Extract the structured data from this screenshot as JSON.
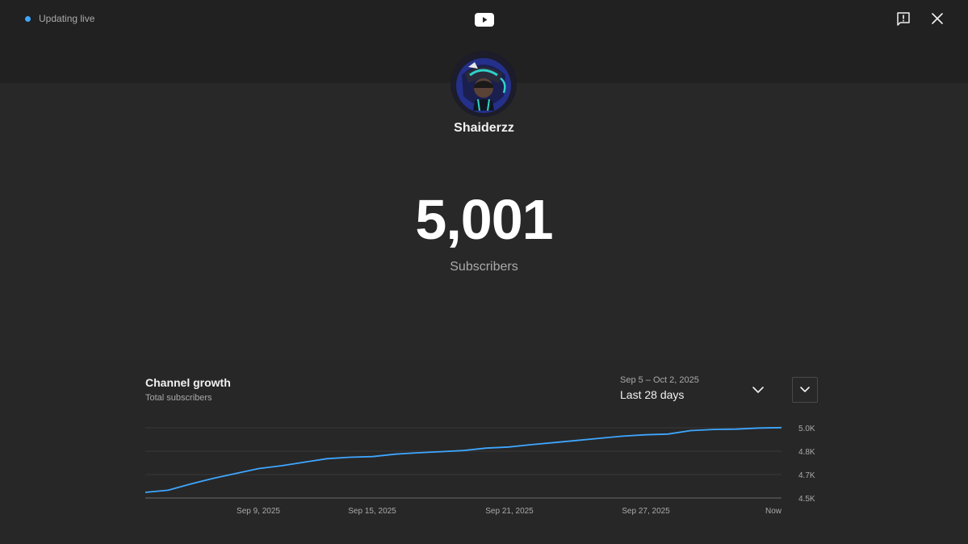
{
  "header": {
    "status_text": "Updating live",
    "status_color": "#3ea6ff",
    "logo_icon": "youtube-logo-icon",
    "feedback_icon": "feedback-icon",
    "close_icon": "close-icon"
  },
  "channel": {
    "name": "Shaiderzz",
    "subscriber_count": "5,001",
    "subscriber_label": "Subscribers"
  },
  "growth": {
    "title": "Channel growth",
    "subtitle": "Total subscribers",
    "date_range": "Sep 5 – Oct 2, 2025",
    "period_label": "Last 28 days"
  },
  "chart_data": {
    "type": "line",
    "title": "Channel growth",
    "subtitle": "Total subscribers",
    "y_tick_labels": [
      "5.0K",
      "4.8K",
      "4.7K",
      "4.5K"
    ],
    "x_tick_labels": [
      "Sep 9, 2025",
      "Sep 15, 2025",
      "Sep 21, 2025",
      "Sep 27, 2025",
      "Now"
    ],
    "ylim": [
      4500,
      5000
    ],
    "grid": true,
    "line_color": "#3ea6ff",
    "series": [
      {
        "x": [
          0,
          1,
          2,
          3,
          4,
          5,
          6,
          7,
          8,
          9,
          10,
          11,
          12,
          13,
          14,
          15,
          16,
          17,
          18,
          19,
          20,
          21,
          22,
          23,
          24,
          25,
          26,
          27,
          28
        ],
        "values": [
          4540,
          4555,
          4600,
          4640,
          4675,
          4710,
          4730,
          4755,
          4780,
          4790,
          4795,
          4812,
          4822,
          4830,
          4838,
          4855,
          4863,
          4880,
          4895,
          4910,
          4925,
          4940,
          4950,
          4955,
          4980,
          4988,
          4990,
          4998,
          5001
        ]
      }
    ]
  }
}
